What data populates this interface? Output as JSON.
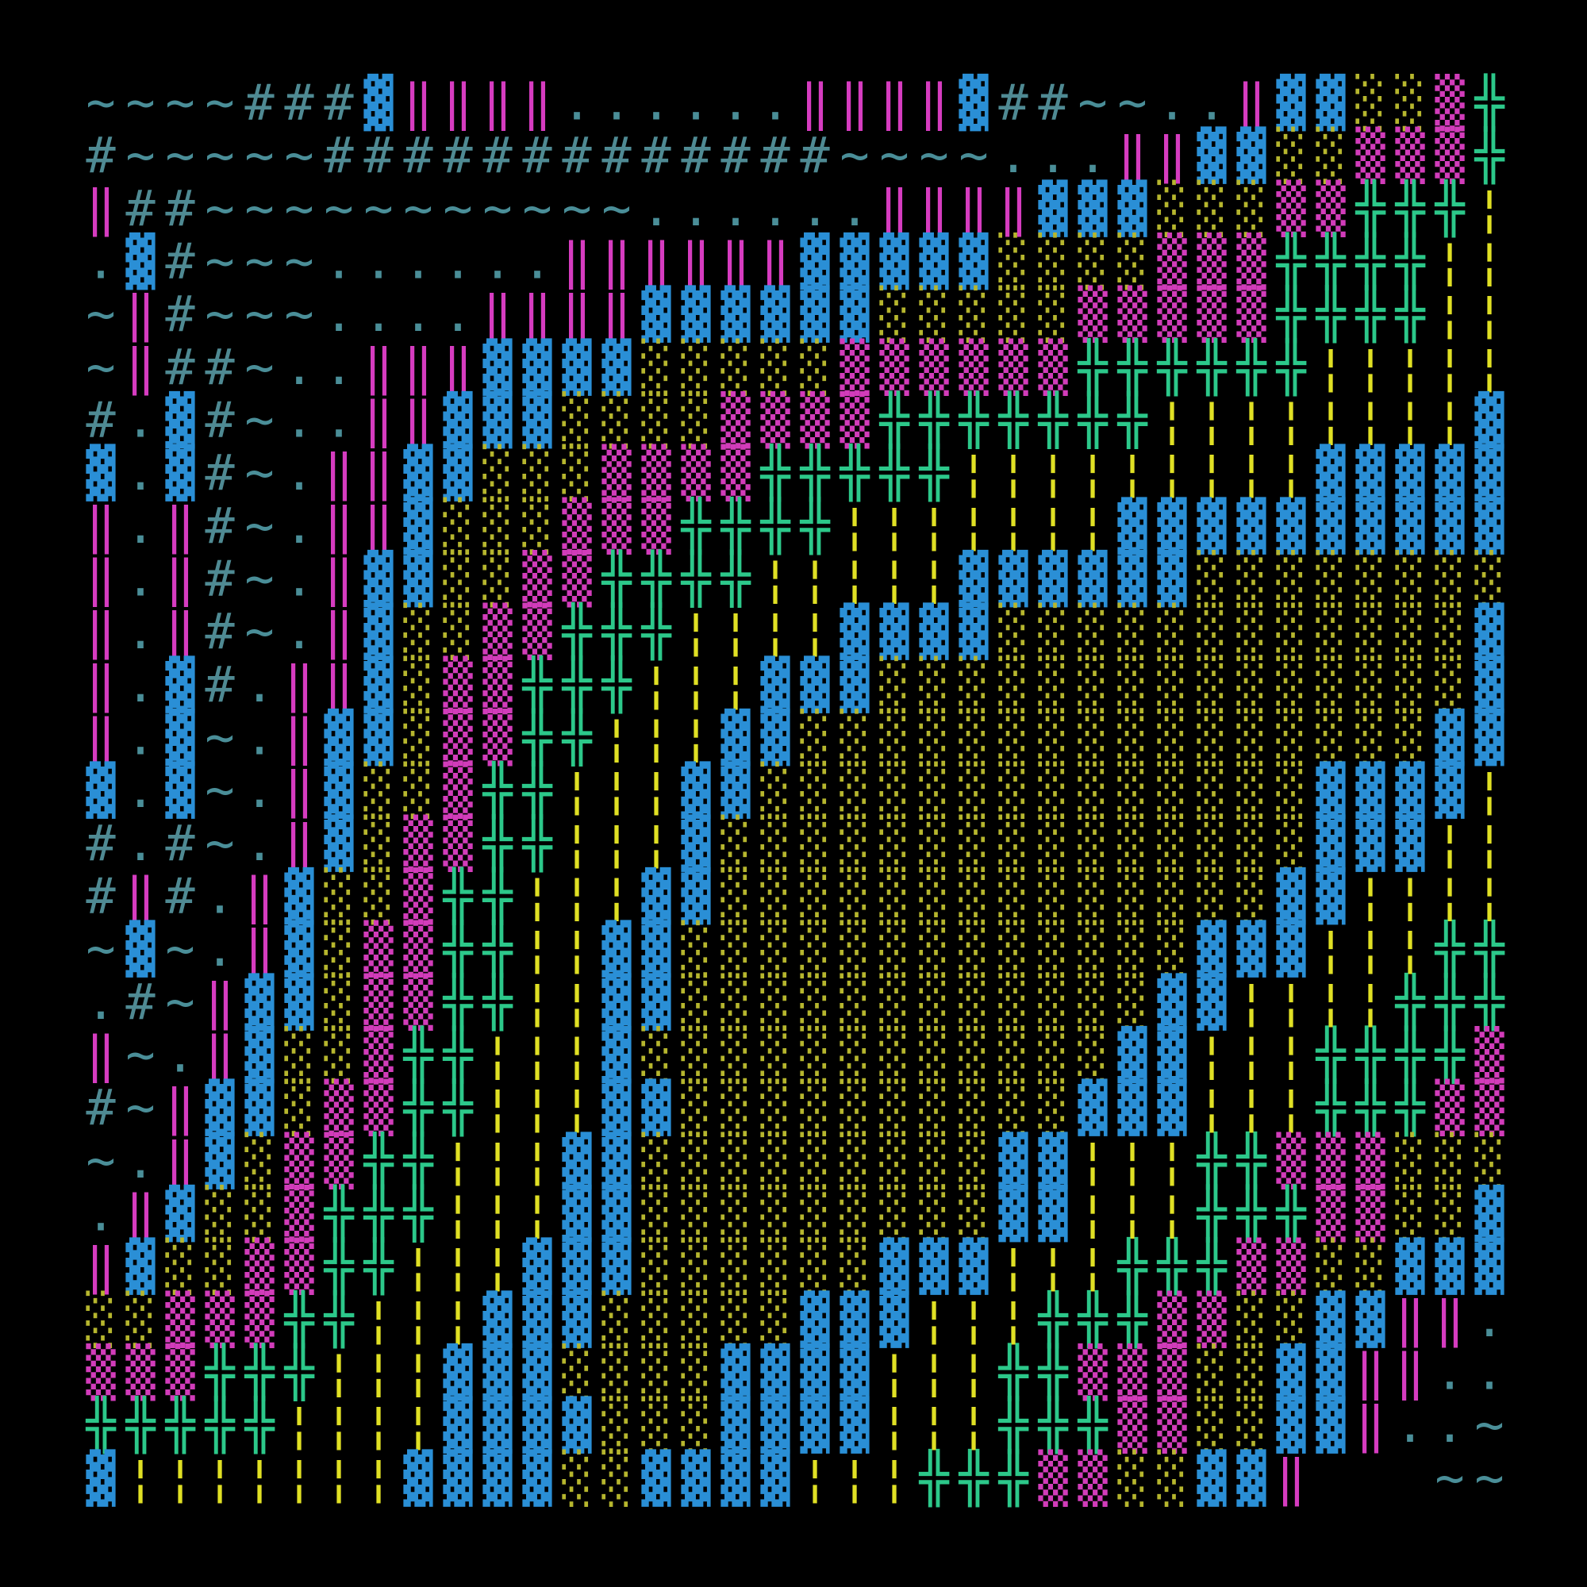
{
  "grid": {
    "rows": [
      "~~~~###▓‖‖‖‖......‖‖‖‖▓##~~..‖▓▓░░▒╬",
      "#~~~~~#############~~~~...‖‖▓▓░░▒▒▒╬",
      "‖##~~~~~~~~~~~......‖‖‖‖▓▓▓░░░▒▒╬╬╬¦",
      ".▓#~~~......‖‖‖‖‖‖▓▓▓▓▓░░░░▒▒▒╬╬╬╬¦¦",
      "~‖#~~~....‖‖‖‖▓▓▓▓▓▓░░░░░▒▒▒▒▒╬╬╬╬¦¦",
      "~‖##~..‖‖‖▓▓▓▓░░░░░▒▒▒▒▒▒╬╬╬╬╬╬¦¦¦¦¦",
      "#.▓#~..‖‖▓▓▓░░░░▒▒▒▒╬╬╬╬╬╬╬¦¦¦¦¦¦¦¦▓",
      "▓.▓#~.‖‖▓▓░░░▒▒▒▒╬╬╬╬╬¦¦¦¦¦¦¦¦¦▓▓▓▓▓",
      "‖.‖#~.‖‖▓░░░▒▒▒╬╬╬╬¦¦¦¦¦¦¦▓▓▓▓▓▓▓▓▓▓",
      "‖.‖#~.‖▓▓░░▒▒╬╬╬╬¦¦¦¦¦▓▓▓▓▓▓░░░░░░░░",
      "‖.‖#~.‖▓░░▒▒╬╬╬¦¦¦¦▓▓▓▓░░░░░░░░░░░░▓",
      "‖.▓#.‖‖▓░▒▒╬╬╬¦¦¦▓▓▓░░░░░░░░░░░░░░░▓",
      "‖.▓~.‖▓▓░▒▒╬╬¦¦¦▓▓░░░░░░░░░░░░░░░░▓▓",
      "▓.▓~.‖▓░░▒╬╬¦¦¦▓▓░░░░░░░░░░░░░░▓▓▓▓¦",
      "#.#~.‖▓░▒▒╬╬¦¦¦▓░░░░░░░░░░░░░░░▓▓▓¦¦",
      "#‖#.‖▓░░▒╬╬¦¦¦▓▓░░░░░░░░░░░░░░▓▓¦¦¦¦",
      "~▓~.‖▓░▒▒╬╬¦¦▓▓░░░░░░░░░░░░░▓▓▓¦¦¦╬╬",
      ".#~‖▓▓░▒▒╬╬¦¦▓▓░░░░░░░░░░░░▓▓¦¦¦¦╬╬╬",
      "‖~.‖▓░░▒╬╬¦¦¦▓░░░░░░░░░░░░▓▓¦¦¦╬╬╬╬▒",
      "#~‖▓▓░▒▒╬╬¦¦¦▓▓░░░░░░░░░░▓▓▓¦¦¦╬╬╬▒▒",
      "~.‖▓░▒▒╬╬¦¦¦▓▓░░░░░░░░░▓▓¦¦¦╬╬▒▒▒░░░",
      ".‖▓░░▒╬╬╬¦¦¦▓▓░░░░░░░░░▓▓¦¦¦╬╬╬▒▒░░▓",
      "‖▓░░▒▒╬╬¦¦¦▓▓▓░░░░░░▓▓▓¦¦¦╬╬╬▒▒░░▓▓▓",
      "░░▒▒▒╬╬¦¦¦▓▓▓░░░░░▓▓▓¦¦¦╬╬╬▒▒░░▓▓‖‖.",
      "▒▒▒╬╬╬¦¦¦▓▓▓░░░░▓▓▓▓¦¦¦╬╬▒▒▒░░▓▓‖‖..",
      "╬╬╬╬╬¦¦¦¦▓▓▓▓░░░▓▓▓▓¦¦¦╬╬╬▒▒░░▓▓‖..~",
      "▓¦¦¦¦¦¦¦▓▓▓▓░░▓▓▓▓¦¦¦╬╬╬▒▒░░▓▓‖   ~~"
    ],
    "colors": {
      "~": "#4a8e98",
      "#": "#4f8a93",
      "▓": "#2a8fd6",
      "‖": "#d63cc0",
      ".": "#4a8e98",
      "░": "#b6b62e",
      "▒": "#d23cba",
      "╬": "#2cc88a",
      "¦": "#e0e024"
    }
  }
}
